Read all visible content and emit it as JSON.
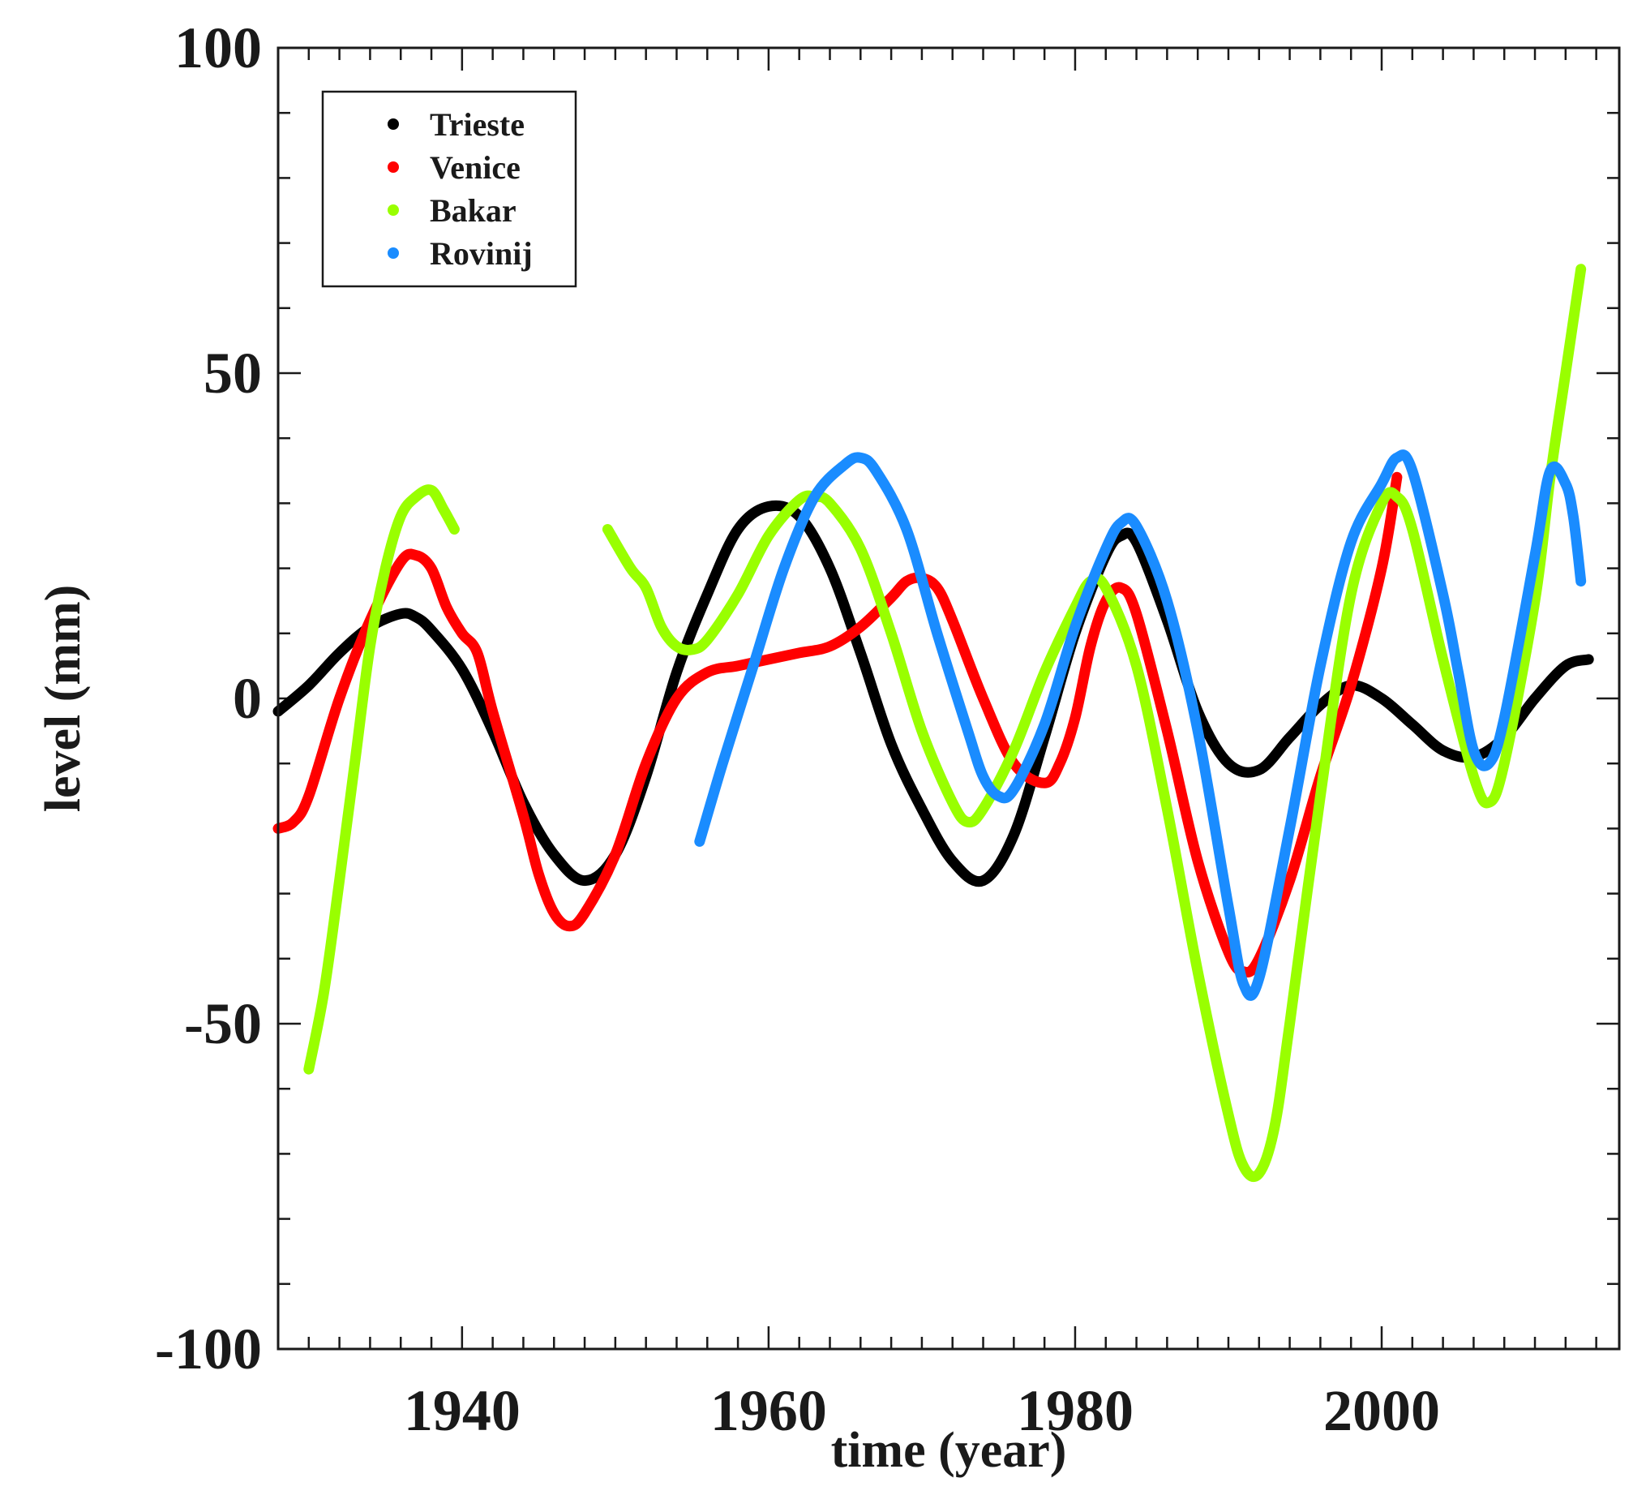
{
  "chart_data": {
    "type": "line",
    "title": "",
    "xlabel": "time (year)",
    "ylabel": "level (mm)",
    "xlim": [
      1928,
      2015.5
    ],
    "ylim": [
      -100,
      100
    ],
    "xticks": [
      1940,
      1960,
      1980,
      2000
    ],
    "xtick_labels": [
      "1940",
      "1960",
      "1980",
      "2000"
    ],
    "yticks": [
      -100,
      -50,
      0,
      50,
      100
    ],
    "ytick_labels": [
      "-100",
      "-50",
      "0",
      "50",
      "100"
    ],
    "x_minor_step": 2,
    "y_minor_step": 10,
    "grid": false,
    "legend_position": "top-left",
    "series": [
      {
        "name": "Trieste",
        "color": "#000000",
        "segments": [
          [
            [
              1928,
              -2
            ],
            [
              1930,
              2
            ],
            [
              1932,
              7
            ],
            [
              1934,
              11
            ],
            [
              1936,
              13
            ],
            [
              1937,
              12.5
            ],
            [
              1938,
              10.5
            ],
            [
              1940,
              4.5
            ],
            [
              1942,
              -5
            ],
            [
              1944,
              -16
            ],
            [
              1946,
              -24
            ],
            [
              1948,
              -28
            ],
            [
              1950,
              -24
            ],
            [
              1952,
              -12
            ],
            [
              1954,
              4
            ],
            [
              1956,
              16
            ],
            [
              1958,
              26
            ],
            [
              1960,
              29.5
            ],
            [
              1962,
              28
            ],
            [
              1964,
              20
            ],
            [
              1966,
              7
            ],
            [
              1968,
              -7
            ],
            [
              1970,
              -17
            ],
            [
              1972,
              -25
            ],
            [
              1974,
              -28
            ],
            [
              1976,
              -21
            ],
            [
              1978,
              -6
            ],
            [
              1980,
              10
            ],
            [
              1982,
              22
            ],
            [
              1983,
              25
            ],
            [
              1984,
              24
            ],
            [
              1986,
              12
            ],
            [
              1988,
              -2
            ],
            [
              1990,
              -10
            ],
            [
              1992,
              -11
            ],
            [
              1994,
              -6
            ],
            [
              1996,
              -1
            ],
            [
              1998,
              2
            ],
            [
              2000,
              0
            ],
            [
              2002,
              -4
            ],
            [
              2004,
              -8
            ],
            [
              2006,
              -9
            ],
            [
              2008,
              -6
            ],
            [
              2010,
              0
            ],
            [
              2012,
              5
            ],
            [
              2013.5,
              6
            ]
          ]
        ]
      },
      {
        "name": "Venice",
        "color": "#ff0000",
        "segments": [
          [
            [
              1928,
              -20
            ],
            [
              1929,
              -19
            ],
            [
              1930,
              -15
            ],
            [
              1932,
              0
            ],
            [
              1934,
              12
            ],
            [
              1936,
              21
            ],
            [
              1937,
              22
            ],
            [
              1938,
              20
            ],
            [
              1939,
              14
            ],
            [
              1940,
              10
            ],
            [
              1941,
              7
            ],
            [
              1942,
              -2
            ],
            [
              1944,
              -18
            ],
            [
              1945,
              -27
            ],
            [
              1946,
              -33
            ],
            [
              1947,
              -35
            ],
            [
              1948,
              -33
            ],
            [
              1950,
              -24
            ],
            [
              1952,
              -10
            ],
            [
              1954,
              0
            ],
            [
              1956,
              4
            ],
            [
              1958,
              5
            ],
            [
              1960,
              6
            ],
            [
              1962,
              7
            ],
            [
              1964,
              8
            ],
            [
              1966,
              11
            ],
            [
              1968,
              15.5
            ],
            [
              1969,
              18
            ],
            [
              1970,
              18.5
            ],
            [
              1971,
              17
            ],
            [
              1972,
              12
            ],
            [
              1974,
              0
            ],
            [
              1976,
              -10
            ],
            [
              1978,
              -13
            ],
            [
              1979,
              -10
            ],
            [
              1980,
              -3
            ],
            [
              1981,
              8
            ],
            [
              1982,
              15
            ],
            [
              1983,
              17
            ],
            [
              1984,
              13
            ],
            [
              1986,
              -5
            ],
            [
              1988,
              -25
            ],
            [
              1990,
              -39
            ],
            [
              1991,
              -42
            ],
            [
              1992,
              -40
            ],
            [
              1994,
              -28
            ],
            [
              1996,
              -12
            ],
            [
              1998,
              2
            ],
            [
              2000,
              20
            ],
            [
              2001,
              34
            ]
          ]
        ]
      },
      {
        "name": "Bakar",
        "color": "#99ff00",
        "segments": [
          [
            [
              1930,
              -57
            ],
            [
              1931,
              -45
            ],
            [
              1932,
              -28
            ],
            [
              1933,
              -10
            ],
            [
              1934,
              8
            ],
            [
              1935,
              20
            ],
            [
              1936,
              28
            ],
            [
              1937,
              31
            ],
            [
              1938,
              32
            ],
            [
              1938.8,
              29
            ],
            [
              1939.5,
              26
            ]
          ],
          [
            [
              1949.5,
              26
            ],
            [
              1951,
              20
            ],
            [
              1952,
              17
            ],
            [
              1953,
              11
            ],
            [
              1954,
              8
            ],
            [
              1955,
              7.5
            ],
            [
              1956,
              9
            ],
            [
              1958,
              16
            ],
            [
              1960,
              25
            ],
            [
              1962,
              30.5
            ],
            [
              1963,
              31
            ],
            [
              1964,
              30
            ],
            [
              1966,
              23
            ],
            [
              1968,
              10
            ],
            [
              1970,
              -5
            ],
            [
              1972,
              -16
            ],
            [
              1973,
              -19
            ],
            [
              1974,
              -17
            ],
            [
              1976,
              -8
            ],
            [
              1978,
              4
            ],
            [
              1980,
              14
            ],
            [
              1981,
              18
            ],
            [
              1982,
              17
            ],
            [
              1984,
              5
            ],
            [
              1986,
              -17
            ],
            [
              1988,
              -42
            ],
            [
              1990,
              -64
            ],
            [
              1991,
              -72
            ],
            [
              1992,
              -73
            ],
            [
              1993,
              -66
            ],
            [
              1994,
              -50
            ],
            [
              1996,
              -15
            ],
            [
              1998,
              16
            ],
            [
              2000,
              30
            ],
            [
              2001,
              31
            ],
            [
              2002,
              26
            ],
            [
              2004,
              6
            ],
            [
              2006,
              -12
            ],
            [
              2007,
              -16
            ],
            [
              2008,
              -10
            ],
            [
              2010,
              15
            ],
            [
              2011,
              34
            ],
            [
              2012,
              50
            ],
            [
              2013,
              66
            ]
          ]
        ]
      },
      {
        "name": "Rovinij",
        "color": "#1a8cff",
        "segments": [
          [
            [
              1955.5,
              -22
            ],
            [
              1957,
              -10
            ],
            [
              1959,
              5
            ],
            [
              1961,
              20
            ],
            [
              1963,
              31
            ],
            [
              1965,
              36
            ],
            [
              1966,
              37
            ],
            [
              1967,
              35
            ],
            [
              1969,
              26
            ],
            [
              1971,
              10
            ],
            [
              1973,
              -5
            ],
            [
              1974,
              -12
            ],
            [
              1975,
              -15
            ],
            [
              1976,
              -14
            ],
            [
              1978,
              -4
            ],
            [
              1980,
              11
            ],
            [
              1982,
              23
            ],
            [
              1983,
              27
            ],
            [
              1984,
              26.5
            ],
            [
              1986,
              15
            ],
            [
              1988,
              -5
            ],
            [
              1990,
              -32
            ],
            [
              1991,
              -44
            ],
            [
              1992,
              -43
            ],
            [
              1994,
              -20
            ],
            [
              1996,
              5
            ],
            [
              1998,
              24
            ],
            [
              2000,
              33
            ],
            [
              2001,
              37
            ],
            [
              2002,
              35
            ],
            [
              2004,
              16
            ],
            [
              2005,
              4
            ],
            [
              2006,
              -8
            ],
            [
              2007,
              -10
            ],
            [
              2008,
              -3
            ],
            [
              2010,
              22
            ],
            [
              2011,
              35
            ],
            [
              2012,
              33
            ],
            [
              2012.5,
              28
            ],
            [
              2013,
              18
            ]
          ]
        ]
      }
    ]
  }
}
